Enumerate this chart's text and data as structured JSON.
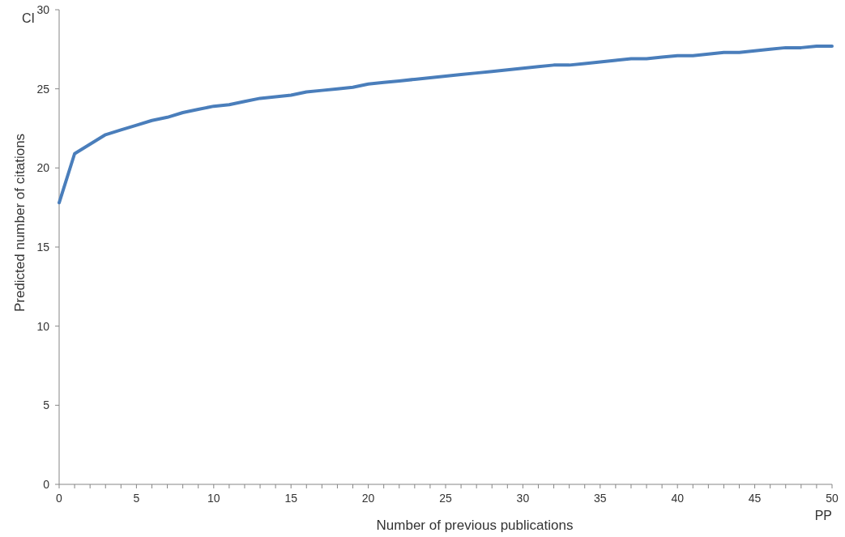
{
  "chart_data": {
    "type": "line",
    "xlabel": "Number of previous publications",
    "ylabel": "Predicted number of citations",
    "annotations": [
      "CI",
      "PP"
    ],
    "x": [
      0,
      1,
      2,
      3,
      4,
      5,
      6,
      7,
      8,
      9,
      10,
      11,
      12,
      13,
      14,
      15,
      16,
      17,
      18,
      19,
      20,
      21,
      22,
      23,
      24,
      25,
      26,
      27,
      28,
      29,
      30,
      31,
      32,
      33,
      34,
      35,
      36,
      37,
      38,
      39,
      40,
      41,
      42,
      43,
      44,
      45,
      46,
      47,
      48,
      49,
      50
    ],
    "series": [
      {
        "color": "#4a7ebb",
        "values": [
          17.8,
          20.9,
          21.5,
          22.1,
          22.4,
          22.7,
          23.0,
          23.2,
          23.5,
          23.7,
          23.9,
          24.0,
          24.2,
          24.4,
          24.5,
          24.6,
          24.8,
          24.9,
          25.0,
          25.1,
          25.3,
          25.4,
          25.5,
          25.6,
          25.7,
          25.8,
          25.9,
          26.0,
          26.1,
          26.2,
          26.3,
          26.4,
          26.5,
          26.5,
          26.6,
          26.7,
          26.8,
          26.9,
          26.9,
          27.0,
          27.1,
          27.1,
          27.2,
          27.3,
          27.3,
          27.4,
          27.5,
          27.6,
          27.6,
          27.7,
          27.7
        ]
      }
    ],
    "xlim": [
      0,
      50
    ],
    "ylim": [
      0,
      30
    ],
    "xticks": [
      0,
      {
        "value": 1,
        "label": null
      },
      {
        "value": 2,
        "label": null
      },
      {
        "value": 3,
        "label": null
      },
      {
        "value": 4,
        "label": null
      },
      5,
      {
        "value": 6,
        "label": null
      },
      {
        "value": 7,
        "label": null
      },
      {
        "value": 8,
        "label": null
      },
      {
        "value": 9,
        "label": null
      },
      10,
      {
        "value": 11,
        "label": null
      },
      {
        "value": 12,
        "label": null
      },
      {
        "value": 13,
        "label": null
      },
      {
        "value": 14,
        "label": null
      },
      15,
      {
        "value": 16,
        "label": null
      },
      {
        "value": 17,
        "label": null
      },
      {
        "value": 18,
        "label": null
      },
      {
        "value": 19,
        "label": null
      },
      20,
      {
        "value": 21,
        "label": null
      },
      {
        "value": 22,
        "label": null
      },
      {
        "value": 23,
        "label": null
      },
      {
        "value": 24,
        "label": null
      },
      25,
      {
        "value": 26,
        "label": null
      },
      {
        "value": 27,
        "label": null
      },
      {
        "value": 28,
        "label": null
      },
      {
        "value": 29,
        "label": null
      },
      30,
      {
        "value": 31,
        "label": null
      },
      {
        "value": 32,
        "label": null
      },
      {
        "value": 33,
        "label": null
      },
      {
        "value": 34,
        "label": null
      },
      35,
      {
        "value": 36,
        "label": null
      },
      {
        "value": 37,
        "label": null
      },
      {
        "value": 38,
        "label": null
      },
      {
        "value": 39,
        "label": null
      },
      40,
      {
        "value": 41,
        "label": null
      },
      {
        "value": 42,
        "label": null
      },
      {
        "value": 43,
        "label": null
      },
      {
        "value": 44,
        "label": null
      },
      45,
      {
        "value": 46,
        "label": null
      },
      {
        "value": 47,
        "label": null
      },
      {
        "value": 48,
        "label": null
      },
      {
        "value": 49,
        "label": null
      },
      50
    ],
    "yticks": [
      0,
      5,
      10,
      15,
      20,
      25,
      30
    ],
    "line_style": "solid",
    "marker": "none"
  }
}
